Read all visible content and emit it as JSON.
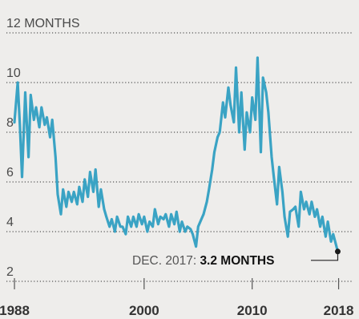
{
  "chart_data": {
    "type": "line",
    "title": "",
    "xlabel": "",
    "ylabel": "12 MONTHS",
    "ylim": [
      2,
      12
    ],
    "xlim": [
      1987.7,
      2018.7
    ],
    "y_ticks": [
      {
        "value": 12,
        "label": "12 MONTHS"
      },
      {
        "value": 10,
        "label": "10"
      },
      {
        "value": 8,
        "label": "8"
      },
      {
        "value": 6,
        "label": "6"
      },
      {
        "value": 4,
        "label": "4"
      },
      {
        "value": 2,
        "label": "2"
      }
    ],
    "x_ticks": [
      {
        "value": 1988,
        "label": "1988"
      },
      {
        "value": 2000,
        "label": "2000"
      },
      {
        "value": 2010,
        "label": "2010"
      },
      {
        "value": 2018,
        "label": "2018"
      }
    ],
    "grid": true,
    "series": [
      {
        "color": "#3aa3c4",
        "x": [
          1988.0,
          1988.3,
          1988.5,
          1988.7,
          1989.0,
          1989.3,
          1989.5,
          1989.8,
          1990.0,
          1990.3,
          1990.5,
          1990.8,
          1991.0,
          1991.3,
          1991.5,
          1991.8,
          1992.0,
          1992.3,
          1992.5,
          1992.8,
          1993.0,
          1993.3,
          1993.5,
          1993.8,
          1994.0,
          1994.3,
          1994.5,
          1994.8,
          1995.0,
          1995.3,
          1995.5,
          1995.8,
          1996.0,
          1996.3,
          1996.5,
          1996.8,
          1997.0,
          1997.3,
          1997.5,
          1997.8,
          1998.0,
          1998.3,
          1998.5,
          1998.8,
          1999.0,
          1999.3,
          1999.5,
          1999.8,
          2000.0,
          2000.3,
          2000.5,
          2000.8,
          2001.0,
          2001.3,
          2001.5,
          2001.8,
          2002.0,
          2002.3,
          2002.5,
          2002.8,
          2003.0,
          2003.3,
          2003.5,
          2003.8,
          2004.0,
          2004.3,
          2004.5,
          2004.8,
          2005.0,
          2005.3,
          2005.5,
          2005.8,
          2006.0,
          2006.3,
          2006.5,
          2006.8,
          2007.0,
          2007.3,
          2007.5,
          2007.8,
          2008.0,
          2008.3,
          2008.5,
          2008.8,
          2009.0,
          2009.3,
          2009.5,
          2009.8,
          2010.0,
          2010.3,
          2010.5,
          2010.8,
          2011.0,
          2011.3,
          2011.5,
          2011.8,
          2012.0,
          2012.3,
          2012.5,
          2012.8,
          2013.0,
          2013.3,
          2013.5,
          2013.8,
          2014.0,
          2014.3,
          2014.5,
          2014.8,
          2015.0,
          2015.3,
          2015.5,
          2015.8,
          2016.0,
          2016.3,
          2016.5,
          2016.8,
          2017.0,
          2017.3,
          2017.5,
          2017.8,
          2017.92
        ],
        "y": [
          8.4,
          10.0,
          8.3,
          6.2,
          9.6,
          7.0,
          9.5,
          8.5,
          9.0,
          8.2,
          9.0,
          8.3,
          8.6,
          7.8,
          8.5,
          7.0,
          5.5,
          4.7,
          5.7,
          5.0,
          5.6,
          5.2,
          5.6,
          5.1,
          5.8,
          5.2,
          6.1,
          5.4,
          6.4,
          5.6,
          6.5,
          5.0,
          5.7,
          4.9,
          4.6,
          4.2,
          4.5,
          4.0,
          4.6,
          4.2,
          4.2,
          3.9,
          4.6,
          4.2,
          4.6,
          4.2,
          4.7,
          4.3,
          4.6,
          4.0,
          4.4,
          4.2,
          4.9,
          4.3,
          4.6,
          4.5,
          4.7,
          4.2,
          4.7,
          4.3,
          4.8,
          4.0,
          4.4,
          4.0,
          4.2,
          4.1,
          3.9,
          3.4,
          4.2,
          4.5,
          4.7,
          5.2,
          5.7,
          6.5,
          7.2,
          7.8,
          8.0,
          9.2,
          8.6,
          9.8,
          9.1,
          8.4,
          10.6,
          8.0,
          9.6,
          7.3,
          8.8,
          8.0,
          9.4,
          8.5,
          11.0,
          7.2,
          10.2,
          9.6,
          8.8,
          7.0,
          6.2,
          5.1,
          6.6,
          5.6,
          4.6,
          3.8,
          4.8,
          4.9,
          5.0,
          4.2,
          5.6,
          4.9,
          5.2,
          4.7,
          5.2,
          4.6,
          4.9,
          4.2,
          4.6,
          3.8,
          4.4,
          3.6,
          3.9,
          3.4,
          3.2
        ]
      }
    ],
    "annotation": {
      "x": 2017.92,
      "y": 3.2,
      "label_prefix": "DEC. 2017: ",
      "label_value": "3.2 MONTHS"
    }
  }
}
